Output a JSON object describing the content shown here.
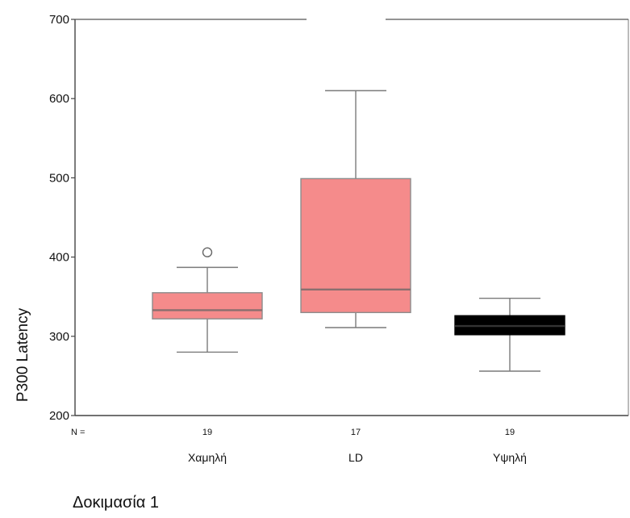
{
  "chart_data": {
    "type": "boxplot",
    "ylabel": "P300 Latency",
    "ylim": [
      200,
      700
    ],
    "yticks": [
      200,
      300,
      400,
      500,
      600,
      700
    ],
    "n_prefix": "N =",
    "categories": [
      "Χαμηλή",
      "LD",
      "Υψηλή"
    ],
    "n": [
      "19",
      "17",
      "19"
    ],
    "boxes": [
      {
        "category": "Χαμηλή",
        "whisker_low": 280,
        "q1": 322,
        "median": 333,
        "q3": 355,
        "whisker_high": 387,
        "outliers": [
          406
        ],
        "color": "#f58b8b"
      },
      {
        "category": "LD",
        "whisker_low": 311,
        "q1": 330,
        "median": 359,
        "q3": 499,
        "whisker_high": 610,
        "outliers": [],
        "color": "#f58b8b"
      },
      {
        "category": "Υψηλή",
        "whisker_low": 256,
        "q1": 302,
        "median": 313,
        "q3": 326,
        "whisker_high": 348,
        "outliers": [],
        "color": "#000000"
      }
    ],
    "grid": false,
    "legend": "none"
  },
  "footer": {
    "caption": "Δοκιμασία 1"
  }
}
